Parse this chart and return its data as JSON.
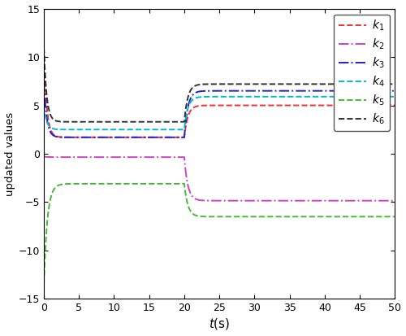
{
  "xlabel": "$t$(s)",
  "ylabel": "updated values",
  "xlim": [
    0,
    50
  ],
  "ylim": [
    -15,
    15
  ],
  "xticks": [
    0,
    5,
    10,
    15,
    20,
    25,
    30,
    35,
    40,
    45,
    50
  ],
  "yticks": [
    -15,
    -10,
    -5,
    0,
    5,
    10,
    15
  ],
  "lines": [
    {
      "name": "k1",
      "label": "$k_1$",
      "color": "#EE3333",
      "linestyle": "--",
      "linewidth": 1.4,
      "t0_val": 11.0,
      "phase1_val": 1.7,
      "phase1_tau": 0.4,
      "phase2_val": 5.0,
      "phase2_tau": 0.5,
      "transition": 20.0
    },
    {
      "name": "k2",
      "label": "$k_2$",
      "color": "#CC44BB",
      "linestyle": "-.",
      "linewidth": 1.4,
      "t0_val": -0.3,
      "phase1_val": -0.35,
      "phase1_tau": 0.5,
      "phase2_val": -4.85,
      "phase2_tau": 0.5,
      "transition": 20.0
    },
    {
      "name": "k3",
      "label": "$k_3$",
      "color": "#2222CC",
      "linestyle": "-.",
      "linewidth": 1.4,
      "t0_val": 7.5,
      "phase1_val": 1.7,
      "phase1_tau": 0.4,
      "phase2_val": 6.5,
      "phase2_tau": 0.5,
      "transition": 20.0
    },
    {
      "name": "k4",
      "label": "$k_4$",
      "color": "#00BBCC",
      "linestyle": "--",
      "linewidth": 1.4,
      "t0_val": 5.0,
      "phase1_val": 2.5,
      "phase1_tau": 0.4,
      "phase2_val": 5.9,
      "phase2_tau": 0.5,
      "transition": 20.0
    },
    {
      "name": "k5",
      "label": "$k_5$",
      "color": "#44BB33",
      "linestyle": "--",
      "linewidth": 1.4,
      "t0_val": -13.5,
      "phase1_val": -3.1,
      "phase1_tau": 0.5,
      "phase2_val": -6.5,
      "phase2_tau": 0.5,
      "transition": 20.0
    },
    {
      "name": "k6",
      "label": "$k_6$",
      "color": "#333333",
      "linestyle": "--",
      "linewidth": 1.4,
      "t0_val": 11.0,
      "phase1_val": 3.3,
      "phase1_tau": 0.4,
      "phase2_val": 7.2,
      "phase2_tau": 0.5,
      "transition": 20.0
    }
  ],
  "legend_loc": "upper right",
  "background_color": "#FFFFFF"
}
